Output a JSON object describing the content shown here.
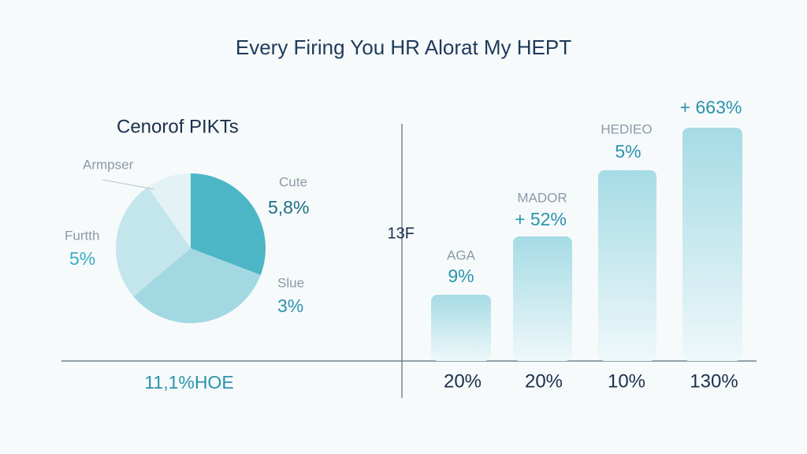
{
  "title": "Every Firing You HR Alorat My HEPT",
  "pie_panel": {
    "title": "Cenorof PIKTs",
    "slices": [
      {
        "label": "Cute",
        "value": "5,8%"
      },
      {
        "label": "Slue",
        "value": "3%"
      },
      {
        "label": "Furtth",
        "value": "5%"
      },
      {
        "label": "Armpser"
      }
    ],
    "footer": "11,1%HOE"
  },
  "bar_panel": {
    "axis_label": "13F",
    "bars": [
      {
        "label": "AGA",
        "value": "9%",
        "x_label": "20%"
      },
      {
        "label": "MADOR",
        "value": "+ 52%",
        "x_label": "20%"
      },
      {
        "label": "HEDIEO",
        "value": "5%",
        "x_label": "10%"
      },
      {
        "value": "+ 663%",
        "x_label": "130%"
      }
    ]
  }
}
